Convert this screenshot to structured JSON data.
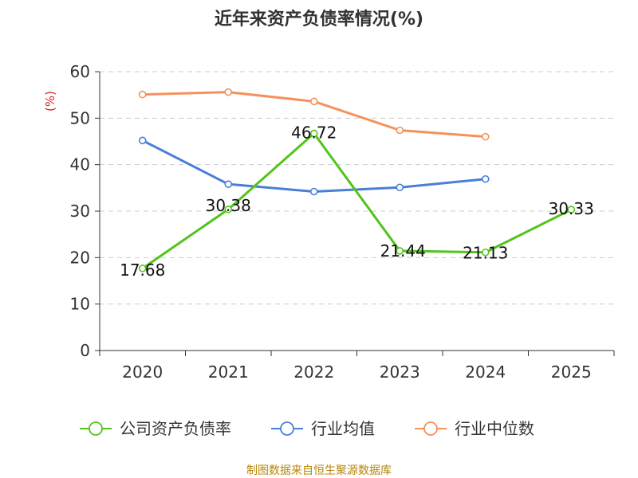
{
  "chart_data": {
    "type": "line",
    "title": "近年来资产负债率情况(%)",
    "ylabel": "(%)",
    "xlabel": "",
    "categories": [
      "2020",
      "2021",
      "2022",
      "2023",
      "2024",
      "2025"
    ],
    "ylim": [
      0,
      60
    ],
    "yticks": [
      0,
      10,
      20,
      30,
      40,
      50,
      60
    ],
    "grid": true,
    "legend": "bottom",
    "series": [
      {
        "name": "公司资产负债率",
        "color": "#52c41a",
        "values": [
          17.68,
          30.38,
          46.72,
          21.44,
          21.13,
          30.33
        ],
        "labels": true
      },
      {
        "name": "行业均值",
        "color": "#4a7fd8",
        "values": [
          45.2,
          35.8,
          34.2,
          35.1,
          36.9,
          null
        ],
        "labels": false
      },
      {
        "name": "行业中位数",
        "color": "#f5915a",
        "values": [
          55.1,
          55.6,
          53.6,
          47.4,
          46.0,
          null
        ],
        "labels": false
      }
    ]
  },
  "source": "制图数据来自恒生聚源数据库"
}
